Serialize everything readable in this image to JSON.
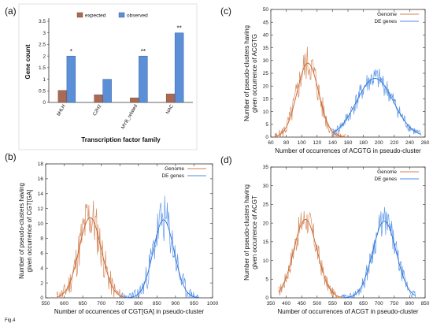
{
  "figure_label": "Fig.4",
  "colors": {
    "genome": "#d08050",
    "de": "#4f8ee8",
    "expected": "#a86a52",
    "observed": "#5b8fd8",
    "fit_genome": "#c8642e",
    "fit_de": "#2f6fd0"
  },
  "chart_data": [
    {
      "panel": "(a)",
      "type": "bar",
      "title": "",
      "xlabel": "Transcription factor family",
      "ylabel": "Gene count",
      "ylim": [
        0,
        3.5
      ],
      "yticks": [
        "0",
        "0.5",
        "1",
        "1.5",
        "2",
        "2.5",
        "3",
        "3.5"
      ],
      "categories": [
        "bHLH",
        "C2H2",
        "MYB_related",
        "NAC"
      ],
      "series": [
        {
          "name": "expected",
          "values": [
            0.52,
            0.33,
            0.2,
            0.37
          ]
        },
        {
          "name": "observed",
          "values": [
            2,
            1,
            2,
            3
          ]
        }
      ],
      "annotations": [
        "*",
        "",
        "**",
        "**"
      ],
      "legend": "top",
      "grid": false
    },
    {
      "panel": "(b)",
      "type": "line",
      "title": "",
      "xlabel": "Number of occurrences of CGT[GA] in pseudo-cluster",
      "ylabel": "Number of pseudo-clusters having given occurrence of CGT[GA]",
      "xlim": [
        550,
        1000
      ],
      "ylim": [
        0,
        18
      ],
      "xticks": [
        "550",
        "600",
        "650",
        "700",
        "750",
        "800",
        "850",
        "900",
        "950",
        "1000"
      ],
      "yticks": [
        "0",
        "2",
        "4",
        "6",
        "8",
        "10",
        "12",
        "14",
        "16",
        "18"
      ],
      "series": [
        {
          "name": "Genome",
          "center": 670,
          "sd": 30,
          "peak": 10.8,
          "noise": 3.5,
          "x_from": 580,
          "x_to": 770,
          "seed": 11
        },
        {
          "name": "DE genes",
          "center": 868,
          "sd": 28,
          "peak": 10.5,
          "noise": 3.3,
          "x_from": 755,
          "x_to": 965,
          "seed": 23
        }
      ],
      "legend": "top-right",
      "grid": false
    },
    {
      "panel": "(c)",
      "type": "line",
      "title": "",
      "xlabel": "Number of occurrences of ACGTG in pseudo-cluster",
      "ylabel": "Number of pseudo-clusters having given occurrence of ACGTG",
      "xlim": [
        60,
        260
      ],
      "ylim": [
        0,
        50
      ],
      "xticks": [
        "60",
        "80",
        "100",
        "120",
        "140",
        "160",
        "180",
        "200",
        "220",
        "240",
        "260"
      ],
      "yticks": [
        "0",
        "5",
        "10",
        "15",
        "20",
        "25",
        "30",
        "35",
        "40",
        "45",
        "50"
      ],
      "series": [
        {
          "name": "Genome",
          "center": 108,
          "sd": 14,
          "peak": 29,
          "noise": 7,
          "x_from": 65,
          "x_to": 158,
          "seed": 5
        },
        {
          "name": "DE genes",
          "center": 195,
          "sd": 24,
          "peak": 23,
          "noise": 4.5,
          "x_from": 140,
          "x_to": 255,
          "seed": 41
        }
      ],
      "legend": "top-right",
      "grid": false
    },
    {
      "panel": "(d)",
      "type": "line",
      "title": "",
      "xlabel": "Number of occurrences of ACGT in pseudo-cluster",
      "ylabel": "Number of pseudo-clusters having given occurrence of ACGT",
      "xlim": [
        350,
        850
      ],
      "ylim": [
        0,
        35
      ],
      "xticks": [
        "350",
        "400",
        "450",
        "500",
        "550",
        "600",
        "650",
        "700",
        "750",
        "800",
        "850"
      ],
      "yticks": [
        "0",
        "5",
        "10",
        "15",
        "20",
        "25",
        "30",
        "35"
      ],
      "series": [
        {
          "name": "Genome",
          "center": 462,
          "sd": 38,
          "peak": 21,
          "noise": 4,
          "x_from": 375,
          "x_to": 580,
          "seed": 17
        },
        {
          "name": "DE genes",
          "center": 718,
          "sd": 38,
          "peak": 20.5,
          "noise": 4,
          "x_from": 580,
          "x_to": 820,
          "seed": 29
        }
      ],
      "legend": "top-right",
      "grid": false
    }
  ]
}
